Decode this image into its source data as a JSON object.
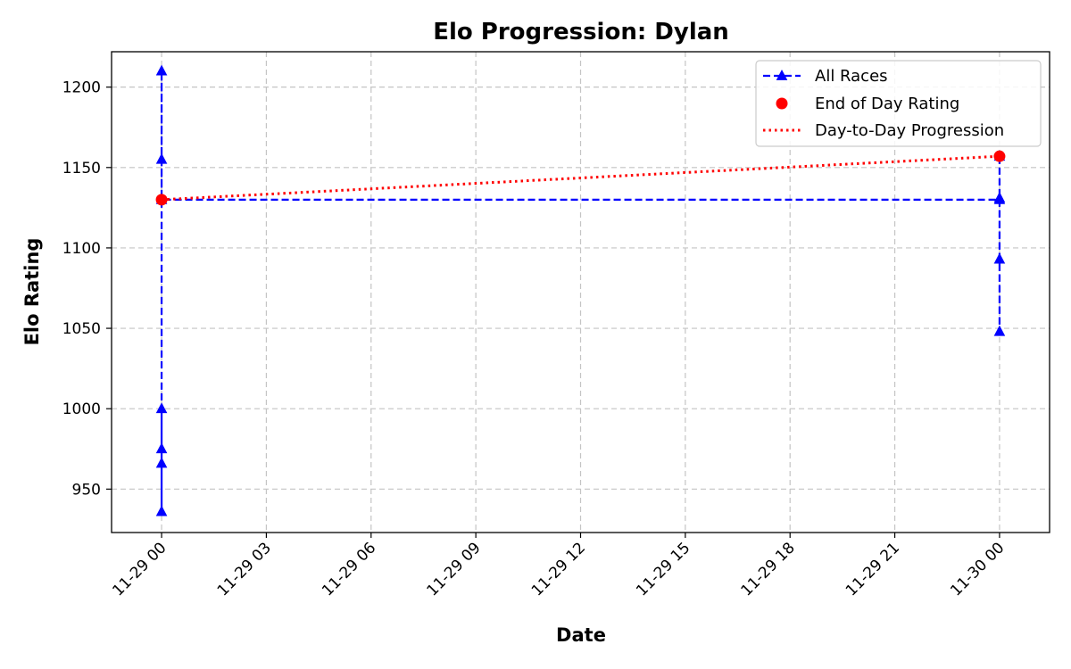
{
  "chart_data": {
    "type": "line",
    "title": "Elo Progression: Dylan",
    "xlabel": "Date",
    "ylabel": "Elo Rating",
    "x_ticks": [
      "11-29 00",
      "11-29 03",
      "11-29 06",
      "11-29 09",
      "11-29 12",
      "11-29 15",
      "11-29 18",
      "11-29 21",
      "11-30 00"
    ],
    "y_ticks": [
      950,
      1000,
      1050,
      1100,
      1150,
      1200
    ],
    "ylim": [
      923,
      1222
    ],
    "xlim": [
      "2024-11-28 22:34",
      "2024-11-30 01:26"
    ],
    "grid": true,
    "legend_position": "top-right",
    "series": [
      {
        "name": "All Races",
        "style": "dashed line with triangle markers",
        "color": "#0000ff",
        "points": [
          {
            "x": "2024-11-29 00:00",
            "y": 1000
          },
          {
            "x": "2024-11-29 00:00",
            "y": 975
          },
          {
            "x": "2024-11-29 00:00",
            "y": 966
          },
          {
            "x": "2024-11-29 00:00",
            "y": 936
          },
          {
            "x": "2024-11-29 00:00",
            "y": 1210
          },
          {
            "x": "2024-11-29 00:00",
            "y": 1155
          },
          {
            "x": "2024-11-29 00:00",
            "y": 1130
          },
          {
            "x": "2024-11-30 00:00",
            "y": 1130
          },
          {
            "x": "2024-11-30 00:00",
            "y": 1048
          },
          {
            "x": "2024-11-30 00:00",
            "y": 1093
          },
          {
            "x": "2024-11-30 00:00",
            "y": 1131
          },
          {
            "x": "2024-11-30 00:00",
            "y": 1157
          }
        ]
      },
      {
        "name": "End of Day Rating",
        "style": "circle markers",
        "color": "#ff0000",
        "points": [
          {
            "x": "2024-11-29 00:00",
            "y": 1130
          },
          {
            "x": "2024-11-30 00:00",
            "y": 1157
          }
        ]
      },
      {
        "name": "Day-to-Day Progression",
        "style": "dotted line",
        "color": "#ff0000",
        "points": [
          {
            "x": "2024-11-29 00:00",
            "y": 1130
          },
          {
            "x": "2024-11-30 00:00",
            "y": 1157
          }
        ]
      }
    ]
  }
}
